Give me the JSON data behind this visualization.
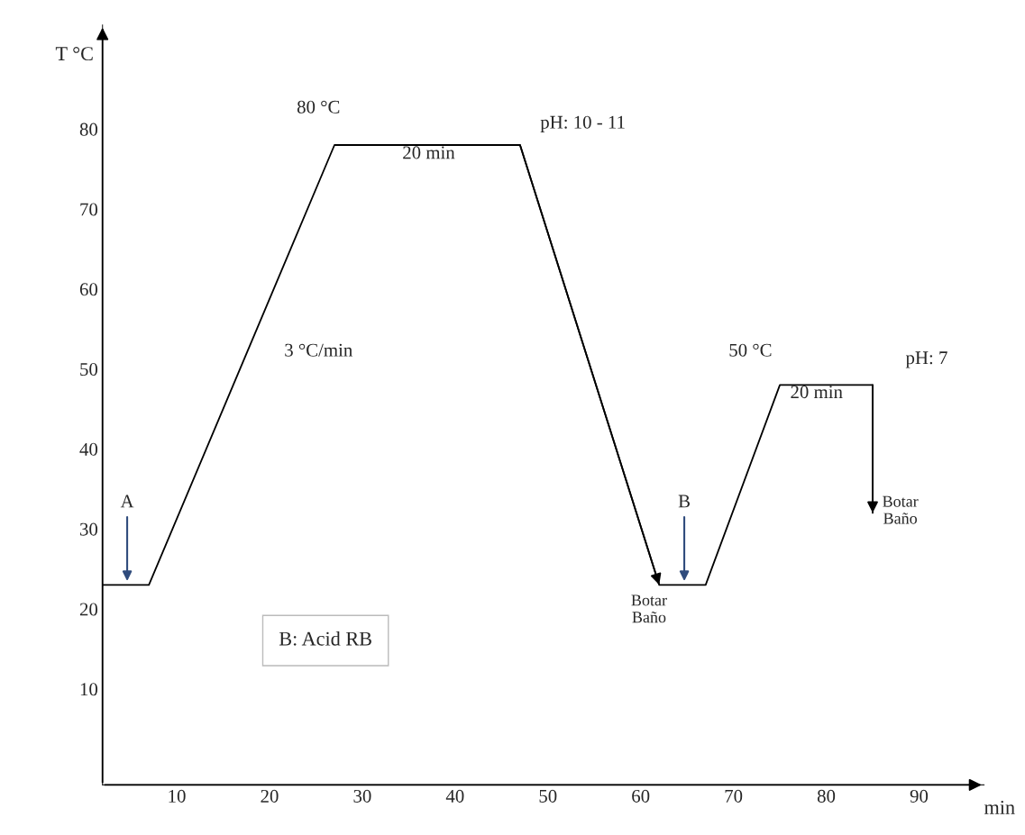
{
  "chart_data": {
    "type": "line",
    "xlabel": "min",
    "ylabel": "T °C",
    "xlim": [
      2,
      97
    ],
    "ylim": [
      -2,
      93
    ],
    "xticks": [
      10,
      20,
      30,
      40,
      50,
      60,
      70,
      80,
      90
    ],
    "yticks": [
      10,
      20,
      30,
      40,
      50,
      60,
      70,
      80
    ],
    "series": [
      {
        "color": "#000000",
        "x": [
          2,
          7,
          27,
          47,
          62,
          67,
          75,
          85,
          85
        ],
        "values": [
          23,
          23,
          78,
          78,
          23,
          23,
          48,
          48,
          32
        ]
      }
    ],
    "marker": "none",
    "line_style": "solid",
    "grid": false,
    "legend": false,
    "annotations": [
      "A",
      "B",
      "80 °C",
      "20 min",
      "pH: 10 - 11",
      "3 °C/min",
      "Botar\nBaño",
      "50 °C",
      "20 min",
      "pH: 7",
      "Botar\nBaño",
      "B: Acid RB"
    ]
  }
}
